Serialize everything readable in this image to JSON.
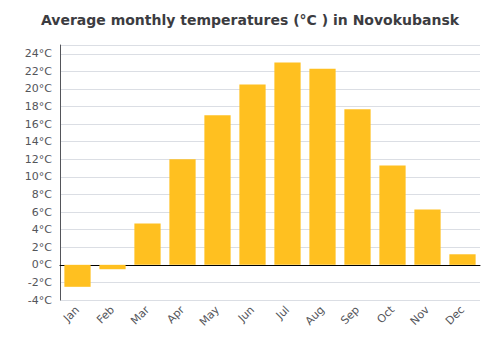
{
  "chart_data": {
    "type": "bar",
    "title": "Average monthly temperatures (°C ) in Novokubansk",
    "categories": [
      "Jan",
      "Feb",
      "Mar",
      "Apr",
      "May",
      "Jun",
      "Jul",
      "Aug",
      "Sep",
      "Oct",
      "Nov",
      "Dec"
    ],
    "values": [
      -2.5,
      -0.5,
      4.7,
      12.0,
      17.0,
      20.5,
      23.0,
      22.3,
      17.7,
      11.3,
      6.3,
      1.2
    ],
    "color": "#FFC020",
    "ylim": [
      -4,
      25
    ],
    "yticks": [
      {
        "value": -4,
        "label": "-4°C"
      },
      {
        "value": -2,
        "label": "-2°C"
      },
      {
        "value": 0,
        "label": "0°C"
      },
      {
        "value": 2,
        "label": "2°C"
      },
      {
        "value": 4,
        "label": "4°C"
      },
      {
        "value": 6,
        "label": "6°C"
      },
      {
        "value": 8,
        "label": "8°C"
      },
      {
        "value": 10,
        "label": "10°C"
      },
      {
        "value": 12,
        "label": "12°C"
      },
      {
        "value": 14,
        "label": "14°C"
      },
      {
        "value": 16,
        "label": "16°C"
      },
      {
        "value": 18,
        "label": "18°C"
      },
      {
        "value": 20,
        "label": "20°C"
      },
      {
        "value": 22,
        "label": "22°C"
      },
      {
        "value": 24,
        "label": "24°C"
      }
    ],
    "grid": true
  }
}
